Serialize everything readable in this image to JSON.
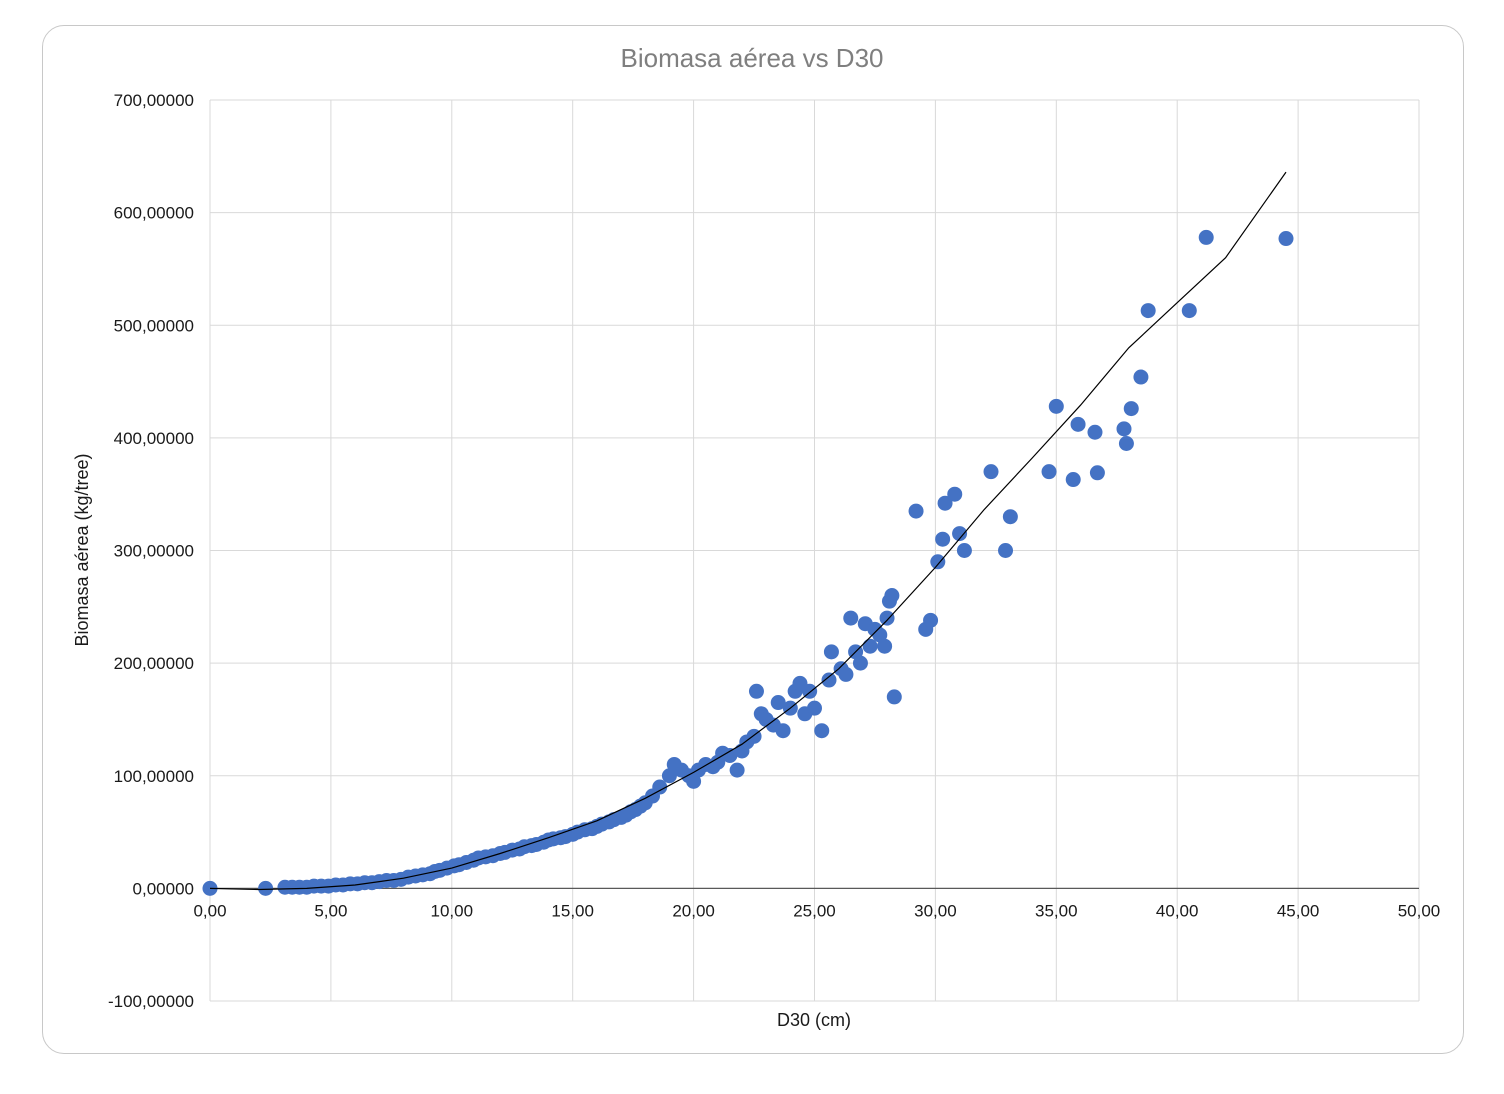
{
  "chart_data": {
    "type": "scatter",
    "title": "Biomasa aérea vs D30",
    "xlabel": "D30 (cm)",
    "ylabel": "Biomasa aérea (kg/tree)",
    "xlim": [
      0,
      50
    ],
    "ylim": [
      -100,
      700
    ],
    "x_ticks": [
      "0,00",
      "5,00",
      "10,00",
      "15,00",
      "20,00",
      "25,00",
      "30,00",
      "35,00",
      "40,00",
      "45,00",
      "50,00"
    ],
    "y_ticks": [
      "-100,00000",
      "0,00000",
      "100,00000",
      "200,00000",
      "300,00000",
      "400,00000",
      "500,00000",
      "600,00000",
      "700,00000"
    ],
    "grid": true,
    "legend": "none",
    "marker_color": "#4472c4",
    "trendline_color": "#000000",
    "trendline": {
      "type": "polynomial",
      "x_range": [
        0,
        44.5
      ],
      "points": [
        [
          0,
          0
        ],
        [
          2,
          -1
        ],
        [
          4,
          0
        ],
        [
          6,
          3
        ],
        [
          8,
          9
        ],
        [
          10,
          18
        ],
        [
          12,
          31
        ],
        [
          14,
          45
        ],
        [
          16,
          60
        ],
        [
          18,
          80
        ],
        [
          20,
          103
        ],
        [
          22,
          128
        ],
        [
          24,
          160
        ],
        [
          26,
          195
        ],
        [
          28,
          238
        ],
        [
          30,
          285
        ],
        [
          32,
          336
        ],
        [
          34,
          382
        ],
        [
          36,
          429
        ],
        [
          38,
          480
        ],
        [
          40,
          520
        ],
        [
          42,
          560
        ],
        [
          44.5,
          636
        ]
      ]
    },
    "series": [
      {
        "x": [
          0,
          2.3,
          3.1,
          3.4,
          3.7,
          4.0,
          4.3,
          4.6,
          4.9,
          5.2,
          5.5,
          5.8,
          6.1,
          6.4,
          6.7,
          7.0,
          7.3,
          7.6,
          7.9,
          8.2,
          8.5,
          8.8,
          9.1,
          9.3,
          9.5,
          9.8,
          10.1,
          10.3,
          10.6,
          10.9,
          11.1,
          11.4,
          11.7,
          12.0,
          12.2,
          12.5,
          12.8,
          13.0,
          13.3,
          13.5,
          13.8,
          14.0,
          14.2,
          14.5,
          14.7,
          15.0,
          15.2,
          15.5,
          15.8,
          16.0,
          16.2,
          16.5,
          16.7,
          17.0,
          17.2,
          17.4,
          17.6,
          17.8,
          18.0,
          18.3,
          18.6,
          19.0,
          19.2,
          19.5,
          19.8,
          20.0,
          20.2,
          20.5,
          20.8,
          21.0,
          21.2,
          21.5,
          21.8,
          22.0,
          22.2,
          22.5,
          22.6,
          22.8,
          23.0,
          23.3,
          23.5,
          23.7,
          24.0,
          24.2,
          24.4,
          24.6,
          24.8,
          25.0,
          25.3,
          25.6,
          25.7,
          26.1,
          26.3,
          26.5,
          26.7,
          26.9,
          27.1,
          27.3,
          27.5,
          27.7,
          27.9,
          28.0,
          28.1,
          28.2,
          28.3,
          29.2,
          29.6,
          29.8,
          30.1,
          30.3,
          30.4,
          30.8,
          31.0,
          31.2,
          32.3,
          32.9,
          33.1,
          34.7,
          35.0,
          35.7,
          35.9,
          36.6,
          36.7,
          37.8,
          37.9,
          38.1,
          38.5,
          38.8,
          40.5,
          41.2,
          44.5
        ],
        "y": [
          0,
          0,
          1,
          1,
          1,
          1,
          2,
          2,
          2,
          3,
          3,
          4,
          4,
          5,
          5,
          6,
          7,
          7,
          8,
          10,
          11,
          12,
          13,
          15,
          16,
          18,
          20,
          21,
          23,
          25,
          27,
          28,
          29,
          31,
          32,
          34,
          35,
          37,
          38,
          39,
          41,
          43,
          44,
          45,
          46,
          48,
          50,
          52,
          53,
          55,
          57,
          59,
          61,
          63,
          65,
          68,
          70,
          73,
          76,
          82,
          90,
          100,
          110,
          105,
          100,
          95,
          105,
          110,
          108,
          112,
          120,
          118,
          105,
          122,
          130,
          135,
          175,
          155,
          150,
          145,
          165,
          140,
          160,
          175,
          182,
          155,
          175,
          160,
          140,
          185,
          210,
          195,
          190,
          240,
          210,
          200,
          235,
          215,
          230,
          225,
          215,
          240,
          255,
          260,
          170,
          335,
          230,
          238,
          290,
          310,
          342,
          350,
          315,
          300,
          370,
          300,
          330,
          370,
          428,
          363,
          412,
          405,
          369,
          408,
          395,
          426,
          454,
          513,
          513,
          578,
          577
        ]
      }
    ]
  }
}
